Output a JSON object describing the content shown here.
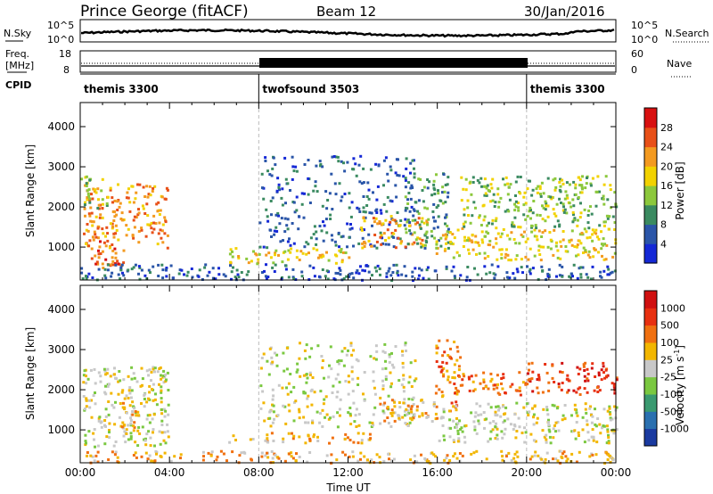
{
  "header": {
    "station": "Prince George (fitACF)",
    "beam": "Beam 12",
    "date": "30/Jan/2016"
  },
  "top_panels": {
    "nsky_label": "N.Sky",
    "nsearch_label": "N.Search",
    "nsky_ticks": [
      "10^5",
      "10^0"
    ],
    "freq_label_1": "Freq.",
    "freq_label_2": "[MHz]",
    "freq_ticks": [
      "18",
      "8"
    ],
    "nave_label": "Nave",
    "nave_ticks": [
      "60",
      "0"
    ],
    "cpid_label": "CPID",
    "cpid_segments": [
      {
        "name": "themis 3300",
        "start_h": 0,
        "end_h": 8
      },
      {
        "name": "twofsound 3503",
        "start_h": 8,
        "end_h": 20
      },
      {
        "name": "themis 3300",
        "start_h": 20,
        "end_h": 24
      }
    ]
  },
  "chart_data": [
    {
      "type": "heatmap",
      "panel": "power",
      "xlabel": "",
      "ylabel": "Slant Range [km]",
      "xlim": [
        0,
        24
      ],
      "ylim": [
        180,
        4600
      ],
      "yticks": [
        "4000",
        "3000",
        "2000",
        "1000"
      ],
      "colorbar_label": "Power [dB]",
      "colorbar_ticks": [
        "28",
        "24",
        "20",
        "16",
        "12",
        "8",
        "4"
      ],
      "colorbar_colors": [
        "#1428d6",
        "#2a55a8",
        "#3a8a60",
        "#8cc83c",
        "#f2d200",
        "#f39a20",
        "#e85018",
        "#d81010"
      ],
      "regions": [
        {
          "t0": 0.1,
          "t1": 3.9,
          "r0": 1000,
          "r1": 2600,
          "level": 5
        },
        {
          "t0": 0.2,
          "t1": 2.0,
          "r0": 500,
          "r1": 1200,
          "level": 6
        },
        {
          "t0": 0.0,
          "t1": 1.2,
          "r0": 2000,
          "r1": 2800,
          "level": 3
        },
        {
          "t0": 6.5,
          "t1": 12.0,
          "r0": 600,
          "r1": 1000,
          "level": 4
        },
        {
          "t0": 8.0,
          "t1": 15.0,
          "r0": 1000,
          "r1": 3300,
          "level": 1
        },
        {
          "t0": 12.5,
          "t1": 15.5,
          "r0": 1000,
          "r1": 1800,
          "level": 5
        },
        {
          "t0": 14.5,
          "t1": 16.5,
          "r0": 1000,
          "r1": 2900,
          "level": 2
        },
        {
          "t0": 15.8,
          "t1": 24.0,
          "r0": 700,
          "r1": 1500,
          "level": 4
        },
        {
          "t0": 17.0,
          "t1": 24.0,
          "r0": 1500,
          "r1": 2800,
          "level": 3
        },
        {
          "t0": 0.0,
          "t1": 24.0,
          "r0": 200,
          "r1": 600,
          "level": 1
        }
      ]
    },
    {
      "type": "heatmap",
      "panel": "velocity",
      "xlabel": "Time UT",
      "ylabel": "Slant Range [km]",
      "xlim": [
        0,
        24
      ],
      "ylim": [
        180,
        4600
      ],
      "xticks": [
        "00:00",
        "04:00",
        "08:00",
        "12:00",
        "16:00",
        "20:00",
        "00:00"
      ],
      "yticks": [
        "4000",
        "3000",
        "2000",
        "1000"
      ],
      "colorbar_label": "Velocity [m s",
      "colorbar_label_sup": "-1",
      "colorbar_ticks": [
        "1000",
        "500",
        "100",
        "25",
        "-25",
        "-100",
        "-500",
        "-1000"
      ],
      "colorbar_colors": [
        "#1a3aa0",
        "#2a70b0",
        "#3a9a70",
        "#7ac840",
        "#c8c8c8",
        "#f2b600",
        "#f07010",
        "#e83010",
        "#d01010"
      ],
      "regions": [
        {
          "t0": 0.0,
          "t1": 4.0,
          "r0": 600,
          "r1": 2600,
          "level": 4
        },
        {
          "t0": 1.8,
          "t1": 2.6,
          "r0": 900,
          "r1": 1700,
          "level": 5
        },
        {
          "t0": 6.5,
          "t1": 13.0,
          "r0": 700,
          "r1": 950,
          "level": 5
        },
        {
          "t0": 8.0,
          "t1": 15.0,
          "r0": 1100,
          "r1": 3200,
          "level": 4
        },
        {
          "t0": 13.0,
          "t1": 16.0,
          "r0": 1200,
          "r1": 1800,
          "level": 5
        },
        {
          "t0": 15.8,
          "t1": 17.0,
          "r0": 1500,
          "r1": 3300,
          "level": 6
        },
        {
          "t0": 16.0,
          "t1": 24.0,
          "r0": 700,
          "r1": 1700,
          "level": 4
        },
        {
          "t0": 17.0,
          "t1": 20.0,
          "r0": 1900,
          "r1": 2500,
          "level": 6
        },
        {
          "t0": 20.0,
          "t1": 24.0,
          "r0": 1900,
          "r1": 2700,
          "level": 7
        },
        {
          "t0": 0.0,
          "t1": 24.0,
          "r0": 200,
          "r1": 500,
          "level": 5
        }
      ]
    }
  ]
}
